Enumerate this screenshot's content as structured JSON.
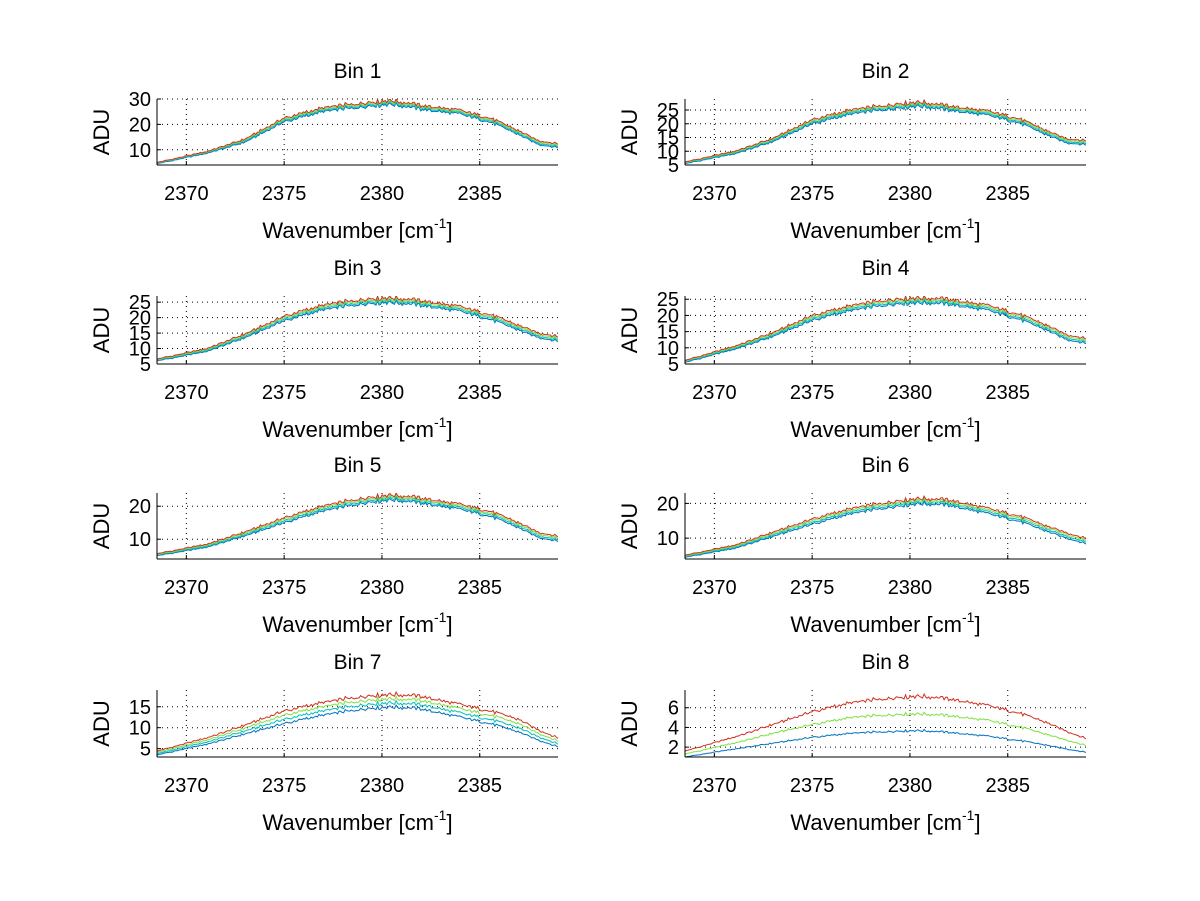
{
  "chart_data": [
    {
      "type": "line",
      "title": "Bin 1",
      "xlabel": "Wavenumber [cm",
      "xlabel_sup": "-1",
      "xlabel_end": "]",
      "ylabel": "ADU",
      "xlim": [
        2368.5,
        2389
      ],
      "ylim": [
        4,
        30
      ],
      "xticks": [
        2370,
        2375,
        2380,
        2385
      ],
      "xtick_labels": [
        "2370",
        "2375",
        "2380",
        "2385"
      ],
      "yticks": [
        10,
        20,
        30
      ],
      "ytick_labels": [
        "10",
        "20",
        "30"
      ],
      "x": [
        2368.5,
        2371,
        2373,
        2375,
        2377,
        2379,
        2380.5,
        2382,
        2384,
        2385.5,
        2387,
        2388,
        2389
      ],
      "series": [
        {
          "name": "blue",
          "color": "#0072bd",
          "values": [
            4.5,
            8.5,
            13,
            21,
            25,
            27,
            28,
            26,
            24,
            21,
            16,
            12,
            11
          ]
        },
        {
          "name": "cyan",
          "color": "#00bfbf",
          "values": [
            4.7,
            8.8,
            13.4,
            21.5,
            25.5,
            27.5,
            28.5,
            26.5,
            24.5,
            21.5,
            16.5,
            12.5,
            11.5
          ]
        },
        {
          "name": "green",
          "color": "#80e040",
          "values": [
            4.9,
            9.0,
            13.8,
            22,
            26,
            28,
            29,
            27,
            25,
            22,
            17,
            13,
            12
          ]
        },
        {
          "name": "red",
          "color": "#d03020",
          "values": [
            5.0,
            9.2,
            14.2,
            22.5,
            26.5,
            28.5,
            29.5,
            27.5,
            25.5,
            22.5,
            17.5,
            13.5,
            12.5
          ]
        }
      ]
    },
    {
      "type": "line",
      "title": "Bin 2",
      "xlabel": "Wavenumber [cm",
      "xlabel_sup": "-1",
      "xlabel_end": "]",
      "ylabel": "ADU",
      "xlim": [
        2368.5,
        2389
      ],
      "ylim": [
        5,
        29
      ],
      "xticks": [
        2370,
        2375,
        2380,
        2385
      ],
      "xtick_labels": [
        "2370",
        "2375",
        "2380",
        "2385"
      ],
      "yticks": [
        5,
        10,
        15,
        20,
        25
      ],
      "ytick_labels": [
        "5",
        "10",
        "15",
        "20",
        "25"
      ],
      "x": [
        2368.5,
        2371,
        2373,
        2375,
        2377,
        2379,
        2380.5,
        2382,
        2384,
        2385.5,
        2387,
        2388,
        2389
      ],
      "series": [
        {
          "name": "blue",
          "color": "#0072bd",
          "values": [
            5.5,
            9,
            13.5,
            20,
            23.5,
            25.5,
            26.5,
            25,
            23,
            20.5,
            16,
            13,
            12.5
          ]
        },
        {
          "name": "cyan",
          "color": "#00bfbf",
          "values": [
            5.7,
            9.3,
            13.9,
            20.5,
            24,
            26,
            27,
            25.5,
            23.5,
            21,
            16.5,
            13.5,
            13
          ]
        },
        {
          "name": "green",
          "color": "#80e040",
          "values": [
            5.9,
            9.6,
            14.3,
            21,
            24.5,
            26.5,
            27.5,
            26,
            24,
            21.5,
            17,
            14,
            13.5
          ]
        },
        {
          "name": "red",
          "color": "#d03020",
          "values": [
            6.1,
            9.9,
            14.7,
            21.5,
            25,
            27,
            28,
            26.5,
            24.5,
            22,
            17.5,
            14.5,
            14
          ]
        }
      ]
    },
    {
      "type": "line",
      "title": "Bin 3",
      "xlabel": "Wavenumber [cm",
      "xlabel_sup": "-1",
      "xlabel_end": "]",
      "ylabel": "ADU",
      "xlim": [
        2368.5,
        2389
      ],
      "ylim": [
        5,
        27
      ],
      "xticks": [
        2370,
        2375,
        2380,
        2385
      ],
      "xtick_labels": [
        "2370",
        "2375",
        "2380",
        "2385"
      ],
      "yticks": [
        5,
        10,
        15,
        20,
        25
      ],
      "ytick_labels": [
        "5",
        "10",
        "15",
        "20",
        "25"
      ],
      "x": [
        2368.5,
        2371,
        2373,
        2375,
        2377,
        2379,
        2380.5,
        2382,
        2384,
        2385.5,
        2387,
        2388,
        2389
      ],
      "series": [
        {
          "name": "blue",
          "color": "#0072bd",
          "values": [
            6,
            9,
            13.5,
            19,
            22.5,
            24.5,
            25,
            24,
            22,
            19.5,
            16,
            13.5,
            12.5
          ]
        },
        {
          "name": "cyan",
          "color": "#00bfbf",
          "values": [
            6.2,
            9.3,
            13.9,
            19.5,
            23,
            25,
            25.5,
            24.5,
            22.5,
            20,
            16.5,
            14,
            13
          ]
        },
        {
          "name": "green",
          "color": "#80e040",
          "values": [
            6.4,
            9.6,
            14.3,
            20,
            23.5,
            25.5,
            26,
            25,
            23,
            20.5,
            17,
            14.5,
            13.5
          ]
        },
        {
          "name": "red",
          "color": "#d03020",
          "values": [
            6.6,
            9.9,
            14.7,
            20.5,
            24,
            26,
            26.5,
            25.5,
            23.5,
            21,
            17.5,
            15,
            14
          ]
        }
      ]
    },
    {
      "type": "line",
      "title": "Bin 4",
      "xlabel": "Wavenumber [cm",
      "xlabel_sup": "-1",
      "xlabel_end": "]",
      "ylabel": "ADU",
      "xlim": [
        2368.5,
        2389
      ],
      "ylim": [
        5,
        26
      ],
      "xticks": [
        2370,
        2375,
        2380,
        2385
      ],
      "xtick_labels": [
        "2370",
        "2375",
        "2380",
        "2385"
      ],
      "yticks": [
        5,
        10,
        15,
        20,
        25
      ],
      "ytick_labels": [
        "5",
        "10",
        "15",
        "20",
        "25"
      ],
      "x": [
        2368.5,
        2371,
        2373,
        2375,
        2377,
        2379,
        2380.5,
        2382,
        2384,
        2385.5,
        2387,
        2388,
        2389
      ],
      "series": [
        {
          "name": "blue",
          "color": "#0072bd",
          "values": [
            5.5,
            9.5,
            13.5,
            18.5,
            21.5,
            23.5,
            24,
            23.5,
            21.5,
            19,
            15.5,
            12.5,
            11.5
          ]
        },
        {
          "name": "cyan",
          "color": "#00bfbf",
          "values": [
            5.7,
            9.8,
            13.9,
            19,
            22,
            24,
            24.5,
            24,
            22,
            19.5,
            16,
            13,
            12
          ]
        },
        {
          "name": "green",
          "color": "#80e040",
          "values": [
            5.9,
            10.1,
            14.3,
            19.5,
            22.5,
            24.5,
            25,
            24.5,
            22.5,
            20,
            16.5,
            13.5,
            12.5
          ]
        },
        {
          "name": "red",
          "color": "#d03020",
          "values": [
            6.1,
            10.4,
            14.7,
            20,
            23,
            25,
            25.5,
            25,
            23,
            20.5,
            17,
            14,
            13
          ]
        }
      ]
    },
    {
      "type": "line",
      "title": "Bin 5",
      "xlabel": "Wavenumber [cm",
      "xlabel_sup": "-1",
      "xlabel_end": "]",
      "ylabel": "ADU",
      "xlim": [
        2368.5,
        2389
      ],
      "ylim": [
        4,
        24
      ],
      "xticks": [
        2370,
        2375,
        2380,
        2385
      ],
      "xtick_labels": [
        "2370",
        "2375",
        "2380",
        "2385"
      ],
      "yticks": [
        10,
        20
      ],
      "ytick_labels": [
        "10",
        "20"
      ],
      "x": [
        2368.5,
        2371,
        2373,
        2375,
        2377,
        2379,
        2380.5,
        2382,
        2384,
        2385.5,
        2387,
        2388,
        2389
      ],
      "series": [
        {
          "name": "blue",
          "color": "#0072bd",
          "values": [
            5,
            7.5,
            11,
            15,
            18.5,
            21,
            22,
            21,
            19,
            17,
            13.5,
            10.5,
            9.5
          ]
        },
        {
          "name": "cyan",
          "color": "#00bfbf",
          "values": [
            5.2,
            7.8,
            11.4,
            15.5,
            19,
            21.5,
            22.5,
            21.5,
            19.5,
            17.5,
            14,
            11,
            10
          ]
        },
        {
          "name": "green",
          "color": "#80e040",
          "values": [
            5.4,
            8.1,
            11.8,
            16,
            19.5,
            22,
            23,
            22,
            20,
            18,
            14.5,
            11.5,
            10.5
          ]
        },
        {
          "name": "red",
          "color": "#d03020",
          "values": [
            5.6,
            8.4,
            12.2,
            16.5,
            20,
            22.5,
            23.5,
            22.5,
            20.5,
            18.5,
            15,
            12,
            11
          ]
        }
      ]
    },
    {
      "type": "line",
      "title": "Bin 6",
      "xlabel": "Wavenumber [cm",
      "xlabel_sup": "-1",
      "xlabel_end": "]",
      "ylabel": "ADU",
      "xlim": [
        2368.5,
        2389
      ],
      "ylim": [
        4,
        23
      ],
      "xticks": [
        2370,
        2375,
        2380,
        2385
      ],
      "xtick_labels": [
        "2370",
        "2375",
        "2380",
        "2385"
      ],
      "yticks": [
        10,
        20
      ],
      "ytick_labels": [
        "10",
        "20"
      ],
      "x": [
        2368.5,
        2371,
        2373,
        2375,
        2377,
        2379,
        2380.5,
        2382,
        2384,
        2385.5,
        2387,
        2388,
        2389
      ],
      "series": [
        {
          "name": "blue",
          "color": "#0072bd",
          "values": [
            4.5,
            7,
            10.5,
            14,
            17,
            19,
            20,
            19.5,
            17,
            15,
            12,
            10,
            8.5
          ]
        },
        {
          "name": "cyan",
          "color": "#00bfbf",
          "values": [
            4.7,
            7.3,
            10.9,
            14.5,
            17.5,
            19.5,
            20.5,
            20,
            17.5,
            15.5,
            12.5,
            10.5,
            9
          ]
        },
        {
          "name": "green",
          "color": "#80e040",
          "values": [
            4.9,
            7.6,
            11.3,
            15,
            18,
            20,
            21,
            20.5,
            18,
            16,
            13,
            11,
            9.5
          ]
        },
        {
          "name": "red",
          "color": "#d03020",
          "values": [
            5.1,
            7.9,
            11.7,
            15.5,
            18.5,
            20.5,
            21.5,
            21,
            18.5,
            16.5,
            13.5,
            11.5,
            10
          ]
        }
      ]
    },
    {
      "type": "line",
      "title": "Bin 7",
      "xlabel": "Wavenumber [cm",
      "xlabel_sup": "-1",
      "xlabel_end": "]",
      "ylabel": "ADU",
      "xlim": [
        2368.5,
        2389
      ],
      "ylim": [
        3,
        19
      ],
      "xticks": [
        2370,
        2375,
        2380,
        2385
      ],
      "xtick_labels": [
        "2370",
        "2375",
        "2380",
        "2385"
      ],
      "yticks": [
        5,
        10,
        15
      ],
      "ytick_labels": [
        "5",
        "10",
        "15"
      ],
      "x": [
        2368.5,
        2371,
        2373,
        2375,
        2377,
        2379,
        2380.5,
        2382,
        2384,
        2385.5,
        2387,
        2388,
        2389
      ],
      "series": [
        {
          "name": "blue",
          "color": "#0072bd",
          "values": [
            3.5,
            6,
            8.5,
            11,
            13,
            14.5,
            15,
            14.5,
            12.5,
            11,
            9,
            7,
            5.5
          ]
        },
        {
          "name": "cyan",
          "color": "#00bfbf",
          "values": [
            3.8,
            6.5,
            9.2,
            12,
            14,
            15.5,
            16,
            15.5,
            13.5,
            12,
            10,
            7.8,
            6.2
          ]
        },
        {
          "name": "green",
          "color": "#80e040",
          "values": [
            4.1,
            7,
            9.9,
            13,
            15,
            16.5,
            17,
            16.5,
            14.5,
            13,
            11,
            8.6,
            6.9
          ]
        },
        {
          "name": "red",
          "color": "#d03020",
          "values": [
            4.4,
            7.5,
            10.6,
            14,
            16,
            17.5,
            18,
            17.5,
            15.5,
            14,
            12,
            9.4,
            7.6
          ]
        }
      ]
    },
    {
      "type": "line",
      "title": "Bin 8",
      "xlabel": "Wavenumber [cm",
      "xlabel_sup": "-1",
      "xlabel_end": "]",
      "ylabel": "ADU",
      "xlim": [
        2368.5,
        2389
      ],
      "ylim": [
        1,
        7.8
      ],
      "xticks": [
        2370,
        2375,
        2380,
        2385
      ],
      "xtick_labels": [
        "2370",
        "2375",
        "2380",
        "2385"
      ],
      "yticks": [
        2,
        4,
        6
      ],
      "ytick_labels": [
        "2",
        "4",
        "6"
      ],
      "x": [
        2368.5,
        2371,
        2373,
        2375,
        2377,
        2379,
        2380.5,
        2382,
        2384,
        2385.5,
        2387,
        2388,
        2389
      ],
      "series": [
        {
          "name": "blue",
          "color": "#0072bd",
          "values": [
            1,
            1.8,
            2.4,
            3,
            3.4,
            3.6,
            3.7,
            3.5,
            3.1,
            2.7,
            2.2,
            1.8,
            1.5
          ]
        },
        {
          "name": "green",
          "color": "#80e040",
          "values": [
            1.3,
            2.4,
            3.4,
            4.3,
            5,
            5.3,
            5.4,
            5.2,
            4.7,
            4.1,
            3.3,
            2.7,
            2.2
          ]
        },
        {
          "name": "red",
          "color": "#d03020",
          "values": [
            1.6,
            3,
            4.3,
            5.6,
            6.5,
            7,
            7.2,
            6.9,
            6.2,
            5.5,
            4.5,
            3.6,
            2.9
          ]
        }
      ]
    }
  ]
}
